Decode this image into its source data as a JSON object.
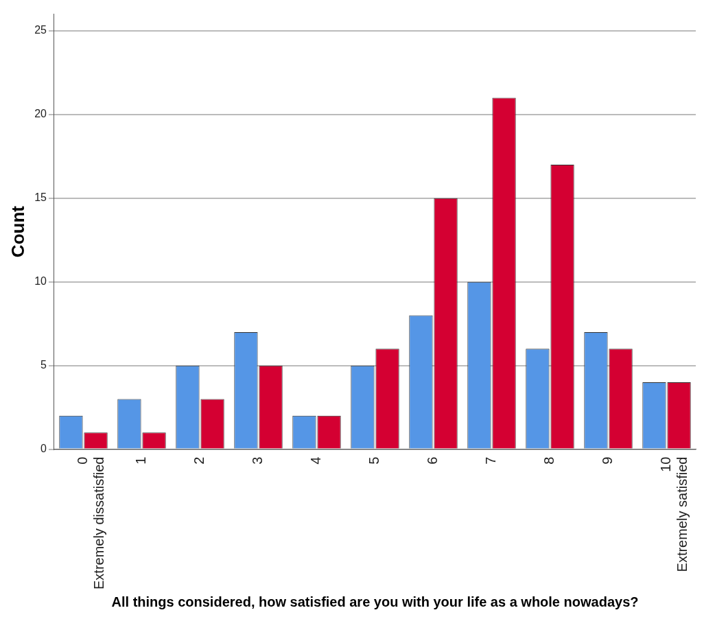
{
  "chart_data": {
    "type": "bar",
    "xlabel": "All things considered, how satisfied are you with your life as a whole nowadays?",
    "ylabel": "Count",
    "categories": [
      "0\nExtremely dissatisfied",
      "1",
      "2",
      "3",
      "4",
      "5",
      "6",
      "7",
      "8",
      "9",
      "10\nExtremely satisfied"
    ],
    "series": [
      {
        "color": "#5596e6",
        "values": [
          2,
          3,
          5,
          7,
          2,
          5,
          8,
          10,
          6,
          7,
          4
        ]
      },
      {
        "color": "#d40032",
        "values": [
          1,
          1,
          3,
          5,
          2,
          6,
          15,
          21,
          17,
          6,
          4
        ]
      }
    ],
    "ylim": [
      0,
      26
    ],
    "yticks": [
      0,
      5,
      10,
      15,
      20,
      25
    ],
    "grid": "y",
    "legend": false
  }
}
